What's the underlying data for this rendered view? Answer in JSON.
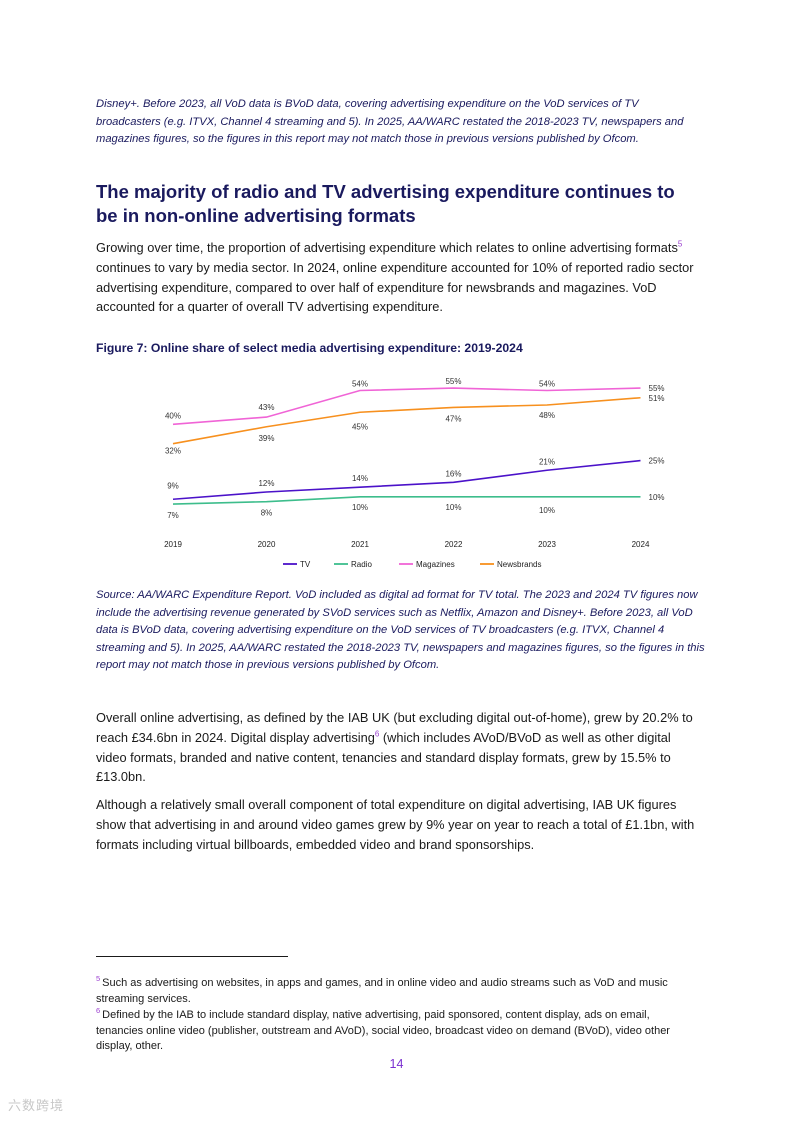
{
  "top_note": "Disney+. Before 2023, all VoD data is BVoD data, covering advertising expenditure on the VoD services of TV broadcasters (e.g. ITVX, Channel 4 streaming and 5). In 2025, AA/WARC restated the 2018-2023 TV, newspapers and magazines figures, so the figures in this report may not match those in previous versions published by Ofcom.",
  "heading": "The majority of radio and TV advertising expenditure continues to be in non-online advertising formats",
  "para1": {
    "part1": "Growing over time, the proportion of advertising expenditure which relates to online advertising formats",
    "ref": "5",
    "part2": " continues to vary by media sector. In 2024, online expenditure accounted for 10% of reported radio sector advertising expenditure, compared to over half of expenditure for newsbrands and magazines. VoD accounted for a quarter of overall TV advertising expenditure."
  },
  "figure_title": "Figure 7: Online share of select media advertising expenditure: 2019-2024",
  "chart_data": {
    "type": "line",
    "title": "Figure 7: Online share of select media advertising expenditure: 2019-2024",
    "xlabel": "",
    "ylabel": "",
    "ylim": [
      0,
      60
    ],
    "grid": false,
    "legend_position": "bottom",
    "x": [
      "2019",
      "2020",
      "2021",
      "2022",
      "2023",
      "2024"
    ],
    "series": [
      {
        "name": "TV",
        "color": "#4b12c9",
        "values": [
          9,
          12,
          14,
          16,
          21,
          25
        ],
        "labels": [
          "9%",
          "12%",
          "14%",
          "16%",
          "21%",
          "25%"
        ]
      },
      {
        "name": "Radio",
        "color": "#3dbd8c",
        "values": [
          7,
          8,
          10,
          10,
          10,
          10
        ],
        "labels": [
          "7%",
          "8%",
          "10%",
          "10%",
          "10%",
          "10%"
        ]
      },
      {
        "name": "Magazines",
        "color": "#f064d6",
        "values": [
          40,
          43,
          54,
          55,
          54,
          55
        ],
        "labels": [
          "40%",
          "43%",
          "54%",
          "55%",
          "54%",
          "55%"
        ]
      },
      {
        "name": "Newsbrands",
        "color": "#f7901e",
        "values": [
          32,
          39,
          45,
          47,
          48,
          51
        ],
        "labels": [
          "32%",
          "39%",
          "45%",
          "47%",
          "48%",
          "51%"
        ]
      }
    ]
  },
  "source_note": "Source: AA/WARC Expenditure Report. VoD included as digital ad format for TV total. The 2023 and 2024 TV figures now include the advertising revenue generated by SVoD services such as Netflix, Amazon and Disney+. Before 2023, all VoD data is BVoD data, covering advertising expenditure on the VoD services of TV broadcasters (e.g. ITVX, Channel 4 streaming and 5). In 2025, AA/WARC restated the 2018-2023 TV, newspapers and magazines figures, so the figures in this report may not match those in previous versions published by Ofcom.",
  "para2": {
    "part1": "Overall online advertising, as defined by the IAB UK (but excluding digital out-of-home), grew by 20.2% to reach £34.6bn in 2024. Digital display advertising",
    "ref": "6",
    "part2": " (which includes AVoD/BVoD as well as other digital video formats, branded and native content, tenancies and standard display formats, grew by 15.5% to £13.0bn."
  },
  "para3": "Although a relatively small overall component of total expenditure on digital advertising, IAB UK figures show that advertising in and around video games grew by 9% year on year to reach a total of £1.1bn, with formats including virtual billboards, embedded video and brand sponsorships.",
  "footnotes": [
    {
      "num": "5",
      "text": "Such as advertising on websites, in apps and games, and in online video and audio streams such as VoD and music streaming services."
    },
    {
      "num": "6",
      "text": "Defined by the IAB to include standard display, native advertising, paid sponsored, content display, ads on email, tenancies online video (publisher, outstream and AVoD), social video, broadcast video on demand (BVoD), video other display, other."
    }
  ],
  "page_number": "14",
  "watermark": "六数跨境"
}
